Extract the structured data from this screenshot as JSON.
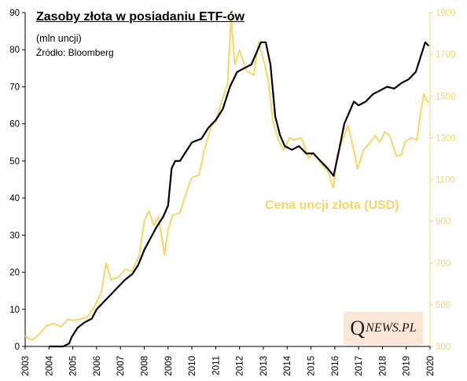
{
  "header": {
    "title": "Zasoby złota w posiadaniu ETF-ów",
    "subtitle": "(mln uncji)",
    "source": "Źródło: Bloomberg"
  },
  "annotation": "Cena uncji złota (USD)",
  "brand": {
    "q": "Q",
    "rest": "NEWS.PL"
  },
  "chart_data": {
    "type": "line",
    "x_ticks": [
      "2003",
      "2004",
      "2005",
      "2006",
      "2007",
      "2008",
      "2009",
      "2010",
      "2011",
      "2012",
      "2013",
      "2014",
      "2015",
      "2016",
      "2017",
      "2018",
      "2019",
      "2020"
    ],
    "xlim": [
      2003,
      2020
    ],
    "y_left": {
      "ticks": [
        0,
        10,
        20,
        30,
        40,
        50,
        60,
        70,
        80,
        90
      ],
      "lim": [
        0,
        90
      ]
    },
    "y_right": {
      "ticks": [
        300,
        500,
        700,
        900,
        1100,
        1300,
        1500,
        1700,
        1900
      ],
      "lim": [
        300,
        1900
      ]
    },
    "colors": {
      "etf": "#000000",
      "gold": "#fbd465",
      "axis_left": "#000000",
      "axis_right": "#fbd465"
    },
    "grid": false,
    "series": [
      {
        "axis": "left",
        "color": "#000000",
        "points": [
          [
            2004.0,
            0
          ],
          [
            2004.6,
            0
          ],
          [
            2004.85,
            0.8
          ],
          [
            2004.95,
            2.5
          ],
          [
            2005.2,
            5
          ],
          [
            2005.5,
            6.5
          ],
          [
            2005.8,
            7.5
          ],
          [
            2006.0,
            10
          ],
          [
            2006.3,
            12
          ],
          [
            2006.6,
            14
          ],
          [
            2006.9,
            16
          ],
          [
            2007.2,
            18
          ],
          [
            2007.5,
            19.5
          ],
          [
            2007.75,
            22
          ],
          [
            2008.0,
            26
          ],
          [
            2008.25,
            29
          ],
          [
            2008.5,
            32
          ],
          [
            2008.8,
            35
          ],
          [
            2009.0,
            38
          ],
          [
            2009.15,
            48
          ],
          [
            2009.3,
            50
          ],
          [
            2009.5,
            50
          ],
          [
            2009.75,
            52.5
          ],
          [
            2010.0,
            55
          ],
          [
            2010.4,
            56
          ],
          [
            2010.7,
            59
          ],
          [
            2011.0,
            61
          ],
          [
            2011.3,
            64
          ],
          [
            2011.6,
            70
          ],
          [
            2011.9,
            74
          ],
          [
            2012.2,
            75
          ],
          [
            2012.5,
            76
          ],
          [
            2012.7,
            79
          ],
          [
            2012.9,
            82
          ],
          [
            2013.1,
            82
          ],
          [
            2013.3,
            76
          ],
          [
            2013.5,
            62
          ],
          [
            2013.7,
            57
          ],
          [
            2013.9,
            54
          ],
          [
            2014.2,
            53
          ],
          [
            2014.5,
            54
          ],
          [
            2014.8,
            52
          ],
          [
            2015.1,
            52
          ],
          [
            2015.4,
            50
          ],
          [
            2015.7,
            48
          ],
          [
            2015.95,
            46
          ],
          [
            2016.15,
            52
          ],
          [
            2016.4,
            60
          ],
          [
            2016.6,
            63
          ],
          [
            2016.8,
            66
          ],
          [
            2017.0,
            65
          ],
          [
            2017.3,
            66
          ],
          [
            2017.6,
            68
          ],
          [
            2017.9,
            69
          ],
          [
            2018.2,
            70
          ],
          [
            2018.5,
            69.5
          ],
          [
            2018.8,
            71
          ],
          [
            2019.1,
            72
          ],
          [
            2019.4,
            74
          ],
          [
            2019.6,
            78
          ],
          [
            2019.8,
            82
          ],
          [
            2019.95,
            81
          ]
        ]
      },
      {
        "axis": "right",
        "color": "#fbd465",
        "points": [
          [
            2003.0,
            350
          ],
          [
            2003.3,
            330
          ],
          [
            2003.6,
            360
          ],
          [
            2003.9,
            400
          ],
          [
            2004.2,
            410
          ],
          [
            2004.5,
            395
          ],
          [
            2004.8,
            430
          ],
          [
            2005.0,
            425
          ],
          [
            2005.3,
            430
          ],
          [
            2005.6,
            440
          ],
          [
            2005.9,
            490
          ],
          [
            2006.2,
            560
          ],
          [
            2006.4,
            700
          ],
          [
            2006.6,
            620
          ],
          [
            2006.9,
            630
          ],
          [
            2007.2,
            670
          ],
          [
            2007.5,
            660
          ],
          [
            2007.8,
            740
          ],
          [
            2008.0,
            900
          ],
          [
            2008.2,
            950
          ],
          [
            2008.4,
            880
          ],
          [
            2008.6,
            920
          ],
          [
            2008.85,
            740
          ],
          [
            2009.0,
            860
          ],
          [
            2009.2,
            930
          ],
          [
            2009.5,
            940
          ],
          [
            2009.8,
            1050
          ],
          [
            2010.0,
            1110
          ],
          [
            2010.3,
            1120
          ],
          [
            2010.5,
            1230
          ],
          [
            2010.8,
            1350
          ],
          [
            2011.0,
            1380
          ],
          [
            2011.3,
            1490
          ],
          [
            2011.5,
            1560
          ],
          [
            2011.65,
            1880
          ],
          [
            2011.8,
            1650
          ],
          [
            2012.0,
            1720
          ],
          [
            2012.3,
            1620
          ],
          [
            2012.6,
            1600
          ],
          [
            2012.8,
            1760
          ],
          [
            2013.0,
            1680
          ],
          [
            2013.2,
            1580
          ],
          [
            2013.4,
            1380
          ],
          [
            2013.6,
            1300
          ],
          [
            2013.85,
            1240
          ],
          [
            2014.1,
            1300
          ],
          [
            2014.3,
            1290
          ],
          [
            2014.6,
            1300
          ],
          [
            2014.9,
            1200
          ],
          [
            2015.1,
            1230
          ],
          [
            2015.4,
            1180
          ],
          [
            2015.7,
            1140
          ],
          [
            2015.95,
            1060
          ],
          [
            2016.1,
            1220
          ],
          [
            2016.3,
            1280
          ],
          [
            2016.55,
            1360
          ],
          [
            2016.8,
            1240
          ],
          [
            2016.95,
            1150
          ],
          [
            2017.2,
            1240
          ],
          [
            2017.5,
            1280
          ],
          [
            2017.7,
            1310
          ],
          [
            2017.9,
            1280
          ],
          [
            2018.1,
            1330
          ],
          [
            2018.3,
            1310
          ],
          [
            2018.6,
            1210
          ],
          [
            2018.8,
            1220
          ],
          [
            2018.95,
            1280
          ],
          [
            2019.2,
            1300
          ],
          [
            2019.45,
            1290
          ],
          [
            2019.6,
            1420
          ],
          [
            2019.75,
            1510
          ],
          [
            2019.85,
            1480
          ],
          [
            2019.95,
            1470
          ]
        ]
      }
    ]
  }
}
